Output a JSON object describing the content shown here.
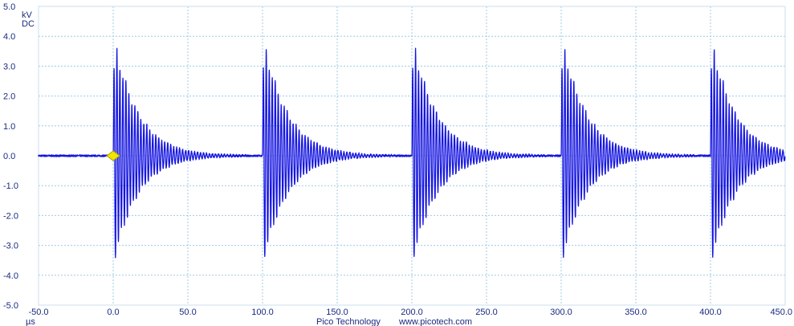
{
  "chart_data": {
    "type": "line",
    "title": "",
    "x_unit": "µs",
    "y_units": [
      "kV",
      "DC"
    ],
    "xlim": [
      -50,
      450
    ],
    "ylim": [
      -5,
      5
    ],
    "x_ticks": [
      -50,
      0,
      50,
      100,
      150,
      200,
      250,
      300,
      350,
      400,
      450
    ],
    "x_tick_labels": [
      "-50.0",
      "0.0",
      "50.0",
      "100.0",
      "150.0",
      "200.0",
      "250.0",
      "300.0",
      "350.0",
      "400.0",
      "450.0"
    ],
    "y_ticks": [
      5,
      4,
      3,
      2,
      1,
      0,
      -1,
      -2,
      -3,
      -4,
      -5
    ],
    "y_tick_labels": [
      "5.0",
      "4.0",
      "3.0",
      "2.0",
      "1.0",
      "0.0",
      "-1.0",
      "-2.0",
      "-3.0",
      "-4.0",
      "-5.0"
    ],
    "grid": true,
    "series": [
      {
        "color": "#1515e0",
        "bursts": [
          {
            "start": 0,
            "peak_pos": 4.0,
            "peak_neg": -3.6
          },
          {
            "start": 100,
            "peak_pos": 4.0,
            "peak_neg": -3.6
          },
          {
            "start": 200,
            "peak_pos": 4.0,
            "peak_neg": -3.6
          },
          {
            "start": 300,
            "peak_pos": 4.0,
            "peak_neg": -3.6
          },
          {
            "start": 400,
            "peak_pos": 4.0,
            "peak_neg": -3.6
          }
        ],
        "ring_period_us": 2.0,
        "decay_time_us": 16.0,
        "baseline_noise_kv": 0.03
      }
    ],
    "trigger_marker": {
      "x": 0,
      "y": 0,
      "color": "#f2e600"
    }
  },
  "footer": {
    "brand": "Pico Technology",
    "url": "www.picotech.com"
  }
}
